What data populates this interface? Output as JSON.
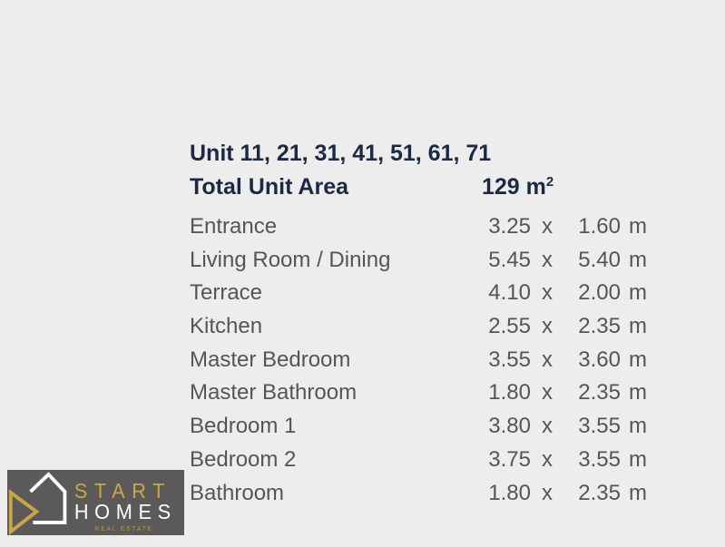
{
  "header": {
    "units": "Unit 11, 21, 31, 41, 51, 61, 71",
    "total_label": "Total Unit Area",
    "total_value": "129 m",
    "total_unit_sup": "2"
  },
  "rooms": [
    {
      "name": "Entrance",
      "a": "3.25",
      "x": "x",
      "b": "1.60",
      "unit": "m"
    },
    {
      "name": "Living Room / Dining",
      "a": "5.45",
      "x": "x",
      "b": "5.40",
      "unit": "m"
    },
    {
      "name": "Terrace",
      "a": "4.10",
      "x": "x",
      "b": "2.00",
      "unit": "m"
    },
    {
      "name": "Kitchen",
      "a": "2.55",
      "x": "x",
      "b": "2.35",
      "unit": "m"
    },
    {
      "name": "Master Bedroom",
      "a": "3.55",
      "x": "x",
      "b": "3.60",
      "unit": "m"
    },
    {
      "name": "Master Bathroom",
      "a": "1.80",
      "x": "x",
      "b": "2.35",
      "unit": "m"
    },
    {
      "name": "Bedroom 1",
      "a": "3.80",
      "x": "x",
      "b": "3.55",
      "unit": "m"
    },
    {
      "name": "Bedroom 2",
      "a": "3.75",
      "x": "x",
      "b": "3.55",
      "unit": "m"
    },
    {
      "name": "Bathroom",
      "a": "1.80",
      "x": "x",
      "b": "2.35",
      "unit": "m"
    }
  ],
  "logo": {
    "line1": "START",
    "line2": "HOMES",
    "line3": "REAL ESTATE"
  },
  "colors": {
    "background": "#ededed",
    "title": "#1b2944",
    "text": "#555555",
    "logo_bg": "#5b5a59",
    "logo_gold": "#c9a64a"
  }
}
